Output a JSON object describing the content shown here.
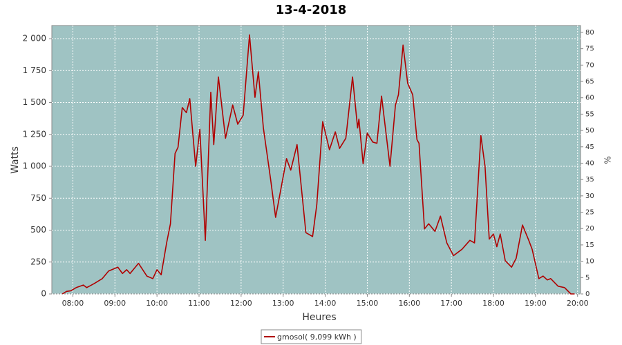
{
  "chart_data": {
    "type": "line",
    "title": "13-4-2018",
    "xlabel": "Heures",
    "ylabel": "Watts",
    "y2label": "%",
    "x": [
      7.75,
      7.85,
      7.95,
      8.08,
      8.25,
      8.33,
      8.5,
      8.7,
      8.85,
      9.07,
      9.18,
      9.28,
      9.36,
      9.56,
      9.76,
      9.9,
      10.0,
      10.1,
      10.23,
      10.32,
      10.43,
      10.5,
      10.6,
      10.7,
      10.78,
      10.92,
      11.02,
      11.15,
      11.28,
      11.35,
      11.46,
      11.63,
      11.8,
      11.92,
      12.05,
      12.2,
      12.33,
      12.41,
      12.53,
      12.7,
      12.82,
      13.08,
      13.18,
      13.33,
      13.54,
      13.7,
      13.8,
      13.94,
      14.1,
      14.24,
      14.34,
      14.49,
      14.65,
      14.77,
      14.8,
      14.9,
      15.0,
      15.13,
      15.23,
      15.34,
      15.54,
      15.67,
      15.74,
      15.85,
      15.96,
      16.08,
      16.18,
      16.23,
      16.36,
      16.46,
      16.61,
      16.74,
      16.89,
      17.05,
      17.25,
      17.44,
      17.55,
      17.7,
      17.8,
      17.9,
      18.0,
      18.08,
      18.16,
      18.28,
      18.43,
      18.54,
      18.69,
      18.84,
      18.92,
      19.08,
      19.18,
      19.28,
      19.36,
      19.54,
      19.69,
      19.84,
      19.93
    ],
    "series": [
      {
        "name": "gmosol( 9,099 kWh )",
        "color": "#b00000",
        "values": [
          0,
          20,
          25,
          50,
          70,
          50,
          80,
          120,
          180,
          210,
          160,
          190,
          160,
          240,
          140,
          120,
          190,
          150,
          400,
          550,
          1100,
          1150,
          1460,
          1420,
          1530,
          1000,
          1290,
          420,
          1580,
          1170,
          1700,
          1220,
          1480,
          1330,
          1400,
          2030,
          1540,
          1740,
          1300,
          900,
          600,
          1060,
          970,
          1170,
          480,
          450,
          700,
          1350,
          1130,
          1270,
          1140,
          1220,
          1700,
          1300,
          1370,
          1020,
          1260,
          1190,
          1180,
          1550,
          1000,
          1480,
          1560,
          1950,
          1650,
          1560,
          1210,
          1180,
          510,
          550,
          490,
          610,
          400,
          300,
          350,
          420,
          400,
          1240,
          1000,
          430,
          470,
          370,
          470,
          260,
          210,
          280,
          540,
          420,
          350,
          120,
          140,
          110,
          120,
          60,
          50,
          0,
          0
        ]
      }
    ],
    "xlim": [
      7.5,
      20.07
    ],
    "xticks": [
      {
        "value": 8,
        "label": "08:00"
      },
      {
        "value": 9,
        "label": "09:00"
      },
      {
        "value": 10,
        "label": "10:00"
      },
      {
        "value": 11,
        "label": "11:00"
      },
      {
        "value": 12,
        "label": "12:00"
      },
      {
        "value": 13,
        "label": "13:00"
      },
      {
        "value": 14,
        "label": "14:00"
      },
      {
        "value": 15,
        "label": "15:00"
      },
      {
        "value": 16,
        "label": "16:00"
      },
      {
        "value": 17,
        "label": "17:00"
      },
      {
        "value": 18,
        "label": "18:00"
      },
      {
        "value": 19,
        "label": "19:00"
      },
      {
        "value": 20,
        "label": "20:00"
      }
    ],
    "ylim": [
      0,
      2103
    ],
    "yticks": [
      0,
      250,
      500,
      750,
      {
        "value": 1000,
        "label": "1 000"
      },
      {
        "value": 1250,
        "label": "1 250"
      },
      {
        "value": 1500,
        "label": "1 500"
      },
      {
        "value": 1750,
        "label": "1 750"
      },
      {
        "value": 2000,
        "label": "2 000"
      }
    ],
    "y2lim": [
      0,
      82.1
    ],
    "y2ticks": [
      0,
      5,
      10,
      15,
      20,
      25,
      30,
      35,
      40,
      45,
      50,
      55,
      60,
      65,
      70,
      75,
      80
    ],
    "grid": true,
    "background": "#9fc3c3",
    "legend": "bottom"
  }
}
